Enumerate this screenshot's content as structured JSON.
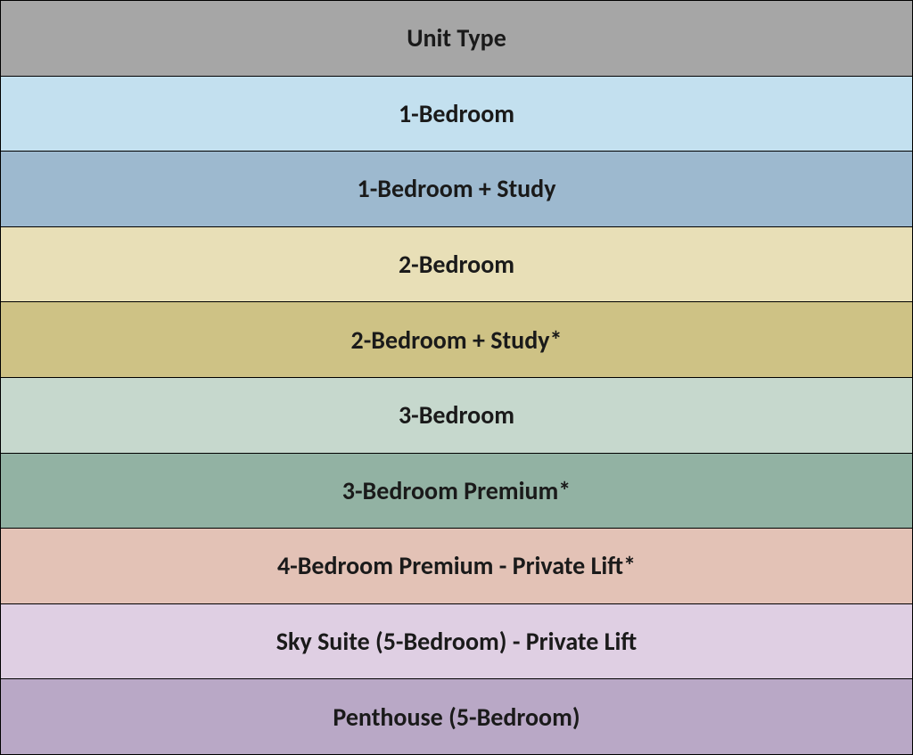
{
  "table": {
    "type": "table",
    "header": {
      "label": "Unit Type",
      "background_color": "#a6a6a6"
    },
    "rows": [
      {
        "label": "1-Bedroom",
        "background_color": "#c3e0ef"
      },
      {
        "label": "1-Bedroom +  Study",
        "background_color": "#9db9cf"
      },
      {
        "label": "2-Bedroom",
        "background_color": "#e8dfb7"
      },
      {
        "label": "2-Bedroom + Study*",
        "background_color": "#cec285"
      },
      {
        "label": "3-Bedroom",
        "background_color": "#c6d8cd"
      },
      {
        "label": "3-Bedroom Premium*",
        "background_color": "#92b2a3"
      },
      {
        "label": "4-Bedroom Premium - Private Lift*",
        "background_color": "#e3c2b6"
      },
      {
        "label": "Sky Suite (5-Bedroom) - Private Lift",
        "background_color": "#dfcfe3"
      },
      {
        "label": "Penthouse (5-Bedroom)",
        "background_color": "#b9a8c6"
      }
    ],
    "text_color": "#1a1a1a",
    "border_color": "#000000",
    "font_size": 28,
    "font_weight": 700
  }
}
